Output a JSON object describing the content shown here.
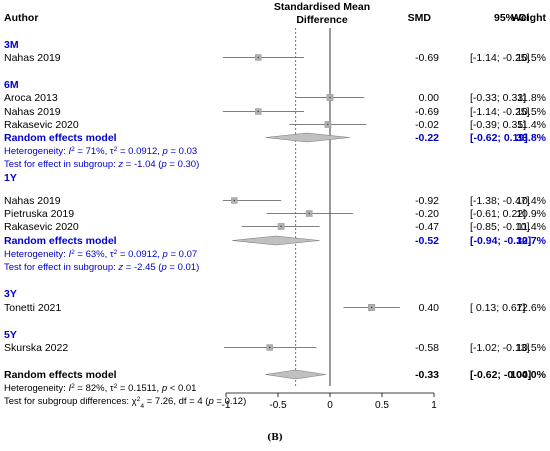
{
  "chart_data": {
    "type": "forest",
    "x_label": "Standardised Mean Difference",
    "header": {
      "author": "Author",
      "plot_title_line1": "Standardised Mean",
      "plot_title_line2": "Difference",
      "smd": "SMD",
      "ci": "95%-CI",
      "weight": "Weight"
    },
    "xlim": [
      -1,
      1
    ],
    "x_ticks": [
      -1,
      -0.5,
      0,
      0.5,
      1
    ],
    "x_tick_labels": [
      "-1",
      "-0.5",
      "0",
      "0.5",
      "1"
    ],
    "overall_reference_line": -0.33,
    "subgroups": [
      {
        "label": "3M",
        "studies": [
          {
            "author": "Nahas 2019",
            "smd": -0.69,
            "lower": -1.14,
            "upper": -0.25,
            "smd_text": "-0.69",
            "ci_text": "[-1.14; -0.25]",
            "weight": "10.5%",
            "weight_value": 10.5
          }
        ]
      },
      {
        "label": "6M",
        "studies": [
          {
            "author": "Aroca 2013",
            "smd": 0.0,
            "lower": -0.33,
            "upper": 0.33,
            "smd_text": "0.00",
            "ci_text": "[-0.33; 0.33]",
            "weight": "11.8%",
            "weight_value": 11.8
          },
          {
            "author": "Nahas 2019",
            "smd": -0.69,
            "lower": -1.14,
            "upper": -0.25,
            "smd_text": "-0.69",
            "ci_text": "[-1.14; -0.25]",
            "weight": "10.5%",
            "weight_value": 10.5
          },
          {
            "author": "Rakasevic 2020",
            "smd": -0.02,
            "lower": -0.39,
            "upper": 0.35,
            "smd_text": "-0.02",
            "ci_text": "[-0.39; 0.35]",
            "weight": "11.4%",
            "weight_value": 11.4
          }
        ],
        "pooled": {
          "label": "Random effects model",
          "smd": -0.22,
          "lower": -0.62,
          "upper": 0.19,
          "smd_text": "-0.22",
          "ci_text": "[-0.62; 0.19]",
          "weight": "33.8%"
        },
        "heterogeneity": {
          "i2": "71%",
          "tau2": "0.0912",
          "p": "0.03"
        },
        "effect_test": {
          "z": "-1.04",
          "p": "0.30"
        }
      },
      {
        "label": "1Y",
        "studies": [
          {
            "author": "Nahas 2019",
            "smd": -0.92,
            "lower": -1.38,
            "upper": -0.47,
            "smd_text": "-0.92",
            "ci_text": "[-1.38; -0.47]",
            "weight": "10.4%",
            "weight_value": 10.4
          },
          {
            "author": "Pietruska 2019",
            "smd": -0.2,
            "lower": -0.61,
            "upper": 0.22,
            "smd_text": "-0.20",
            "ci_text": "[-0.61; 0.22]",
            "weight": "10.9%",
            "weight_value": 10.9
          },
          {
            "author": "Rakasevic 2020",
            "smd": -0.47,
            "lower": -0.85,
            "upper": -0.1,
            "smd_text": "-0.47",
            "ci_text": "[-0.85; -0.10]",
            "weight": "11.4%",
            "weight_value": 11.4
          }
        ],
        "pooled": {
          "label": "Random effects model",
          "smd": -0.52,
          "lower": -0.94,
          "upper": -0.1,
          "smd_text": "-0.52",
          "ci_text": "[-0.94; -0.10]",
          "weight": "32.7%"
        },
        "heterogeneity": {
          "i2": "63%",
          "tau2": "0.0912",
          "p": "0.07"
        },
        "effect_test": {
          "z": "-2.45",
          "p": "0.01"
        }
      },
      {
        "label": "3Y",
        "studies": [
          {
            "author": "Tonetti 2021",
            "smd": 0.4,
            "lower": 0.13,
            "upper": 0.67,
            "smd_text": "0.40",
            "ci_text": "[ 0.13; 0.67]",
            "weight": "12.6%",
            "weight_value": 12.6
          }
        ]
      },
      {
        "label": "5Y",
        "studies": [
          {
            "author": "Skurska 2022",
            "smd": -0.58,
            "lower": -1.02,
            "upper": -0.13,
            "smd_text": "-0.58",
            "ci_text": "[-1.02; -0.13]",
            "weight": "10.5%",
            "weight_value": 10.5
          }
        ]
      }
    ],
    "overall": {
      "label": "Random effects model",
      "smd": -0.33,
      "lower": -0.62,
      "upper": -0.04,
      "smd_text": "-0.33",
      "ci_text": "[-0.62; -0.04]",
      "weight": "100.0%",
      "heterogeneity": {
        "i2": "82%",
        "tau2": "0.1511",
        "p": "< 0.01"
      },
      "subgroup_test": {
        "chi2": "7.26",
        "df": "4",
        "p": "0.12"
      }
    },
    "colors": {
      "subgroup_label": "#0000cc",
      "pooled_text": "#0000cc",
      "square_fill": "#b0b0b0",
      "diamond_fill": "#c0c0c0"
    }
  },
  "caption": "(B)"
}
